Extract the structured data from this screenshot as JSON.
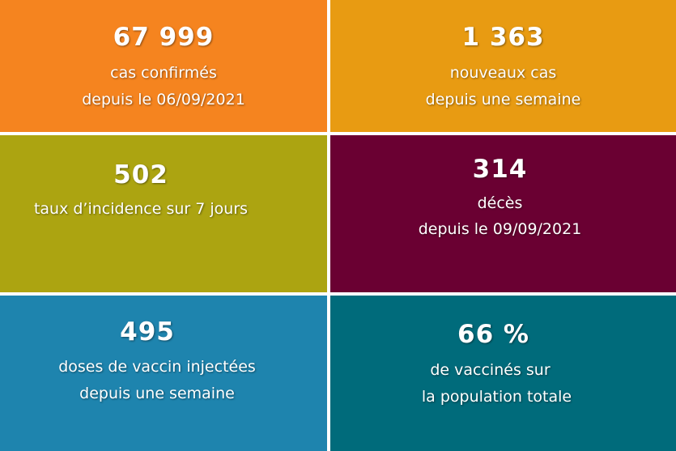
{
  "tiles": [
    {
      "number": "67 999",
      "line1": "cas confirmés",
      "line2": "depuis le 06/09/2021",
      "color": "#f5841f"
    },
    {
      "number": "1 363",
      "line1": "nouveaux cas",
      "line2": "depuis une semaine",
      "color": "#e89b12"
    },
    {
      "number": "502",
      "line1": "taux d’incidence sur 7 jours",
      "color": "#aca411"
    },
    {
      "number": "314",
      "line1": "décès",
      "line2": "depuis le 09/09/2021",
      "color": "#6a0032"
    },
    {
      "number": "495",
      "line1": "doses de vaccin injectées",
      "line2": "depuis une semaine",
      "color": "#1e84ae"
    },
    {
      "number": "66 %",
      "line1": "de vaccinés sur",
      "line2": "la population totale",
      "color": "#006b7b"
    }
  ]
}
